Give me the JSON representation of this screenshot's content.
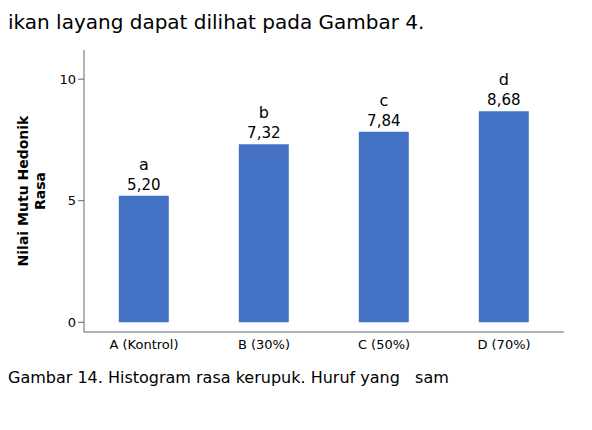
{
  "chart_data": {
    "type": "bar",
    "title": "ikan layang dapat dilihat pada Gambar 4.",
    "annotations": [
      "Gambar 14. Histogram rasa kerupuk. Huruf yang   sam"
    ],
    "ylabel": "Nilai Mutu Hedonik\nRasa",
    "categories": [
      "A (Kontrol)",
      "B (30%)",
      "C (50%)",
      "D (70%)"
    ],
    "values": [
      5.2,
      7.32,
      7.84,
      8.68
    ],
    "value_labels": [
      "5,20",
      "7,32",
      "7,84",
      "8,68"
    ],
    "letter_labels": [
      "a",
      "b",
      "c",
      "d"
    ],
    "data_labels": true,
    "color": "#4472C4",
    "ylim": [
      -0.4,
      11.2
    ],
    "yticks": [
      0,
      5,
      10
    ],
    "grid": false
  }
}
